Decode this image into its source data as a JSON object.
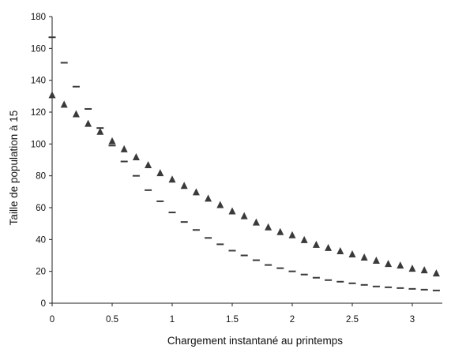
{
  "chart_data": {
    "type": "scatter",
    "title": "",
    "xlabel": "Chargement instantané au printemps",
    "ylabel": "Taille de population à 15",
    "xlim": [
      0,
      3.25
    ],
    "ylim": [
      0,
      180
    ],
    "xticks": [
      0,
      0.5,
      1,
      1.5,
      2,
      2.5,
      3
    ],
    "xtick_labels": [
      "0",
      "0.5",
      "1",
      "1.5",
      "2",
      "2.5",
      "3"
    ],
    "yticks": [
      0,
      20,
      40,
      60,
      80,
      100,
      120,
      140,
      160,
      180
    ],
    "ytick_labels": [
      "0",
      "20",
      "40",
      "60",
      "80",
      "100",
      "120",
      "140",
      "160",
      "180"
    ],
    "grid": false,
    "legend": "none",
    "x": [
      0,
      0.1,
      0.2,
      0.3,
      0.4,
      0.5,
      0.6,
      0.7,
      0.8,
      0.9,
      1.0,
      1.1,
      1.2,
      1.3,
      1.4,
      1.5,
      1.6,
      1.7,
      1.8,
      1.9,
      2.0,
      2.1,
      2.2,
      2.3,
      2.4,
      2.5,
      2.6,
      2.7,
      2.8,
      2.9,
      3.0,
      3.1,
      3.2
    ],
    "series": [
      {
        "marker": "triangle",
        "values": [
          131,
          125,
          119,
          113,
          108,
          102,
          97,
          92,
          87,
          82,
          78,
          74,
          70,
          66,
          62,
          58,
          55,
          51,
          48,
          45,
          43,
          40,
          37,
          35,
          33,
          31,
          29,
          27,
          25,
          24,
          22,
          21,
          19
        ]
      },
      {
        "marker": "dash",
        "values": [
          167,
          151,
          136,
          122,
          110,
          99,
          89,
          80,
          71,
          64,
          57,
          51,
          46,
          41,
          37,
          33,
          30,
          27,
          24,
          22,
          20,
          18,
          16,
          14.5,
          13.5,
          12.5,
          11.5,
          10.5,
          10,
          9.5,
          9,
          8.5,
          8
        ]
      }
    ]
  }
}
